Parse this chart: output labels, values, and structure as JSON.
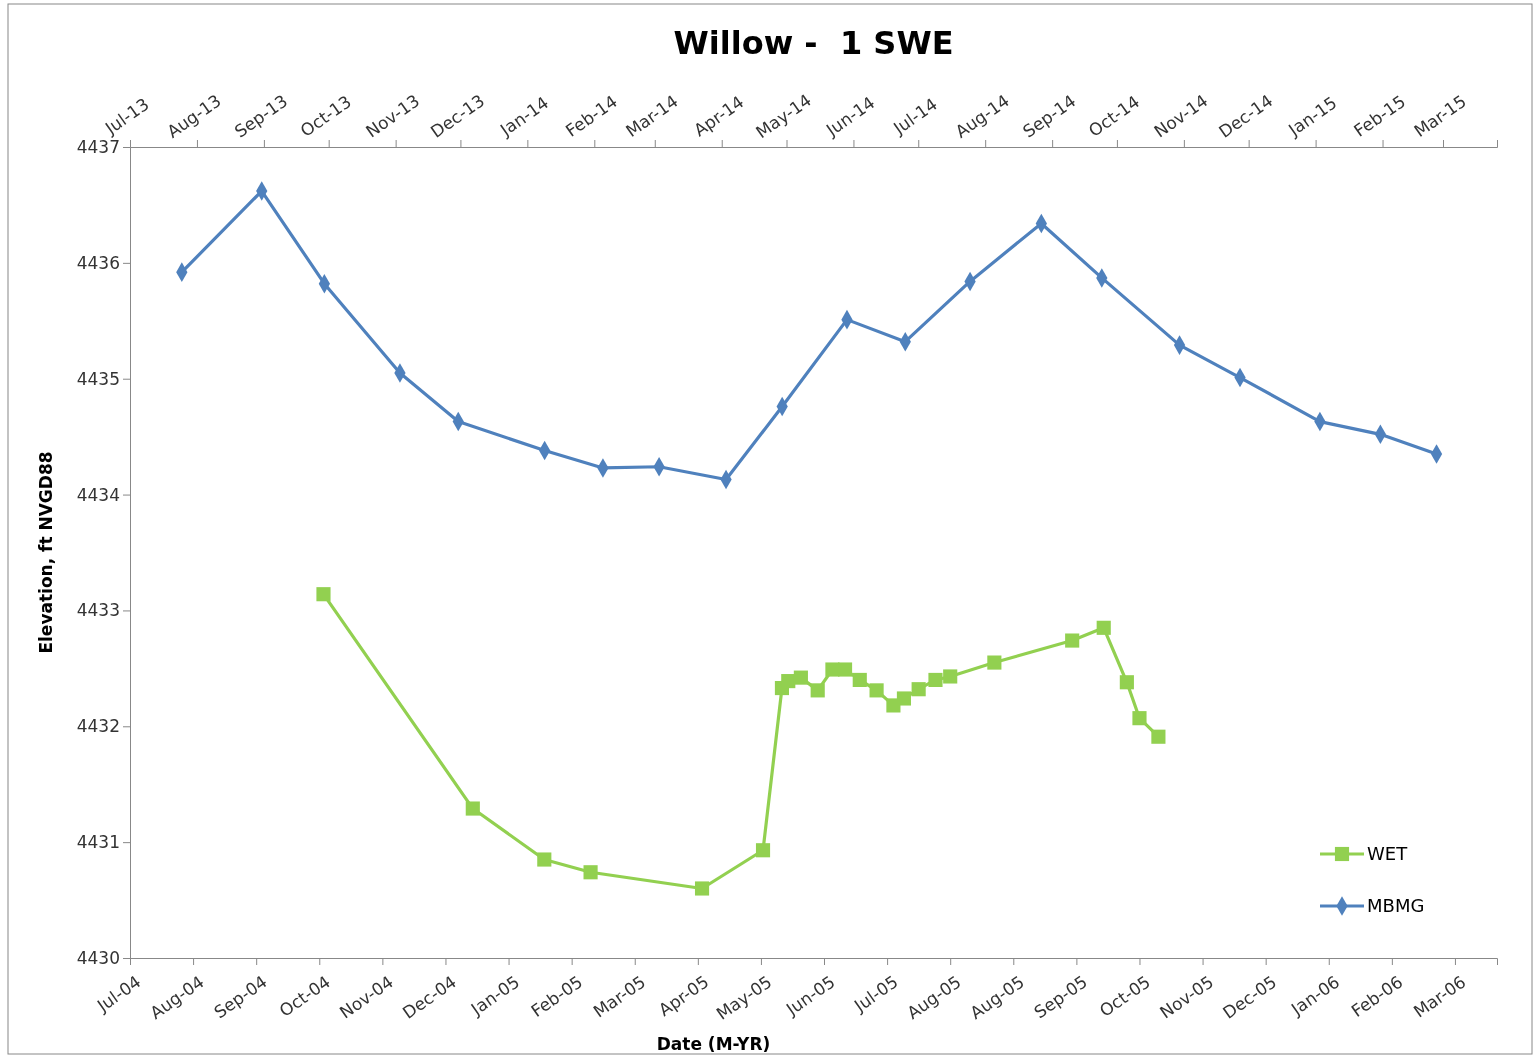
{
  "chart_data": {
    "type": "line",
    "title": "Willow -  1 SWE",
    "xlabel": "Date (M-YR)",
    "ylabel": "Elevation, ft NVGD88",
    "xlim": [
      "2004-07-07",
      "2006-04-18"
    ],
    "xticks": [
      {
        "value": "2004-07-07",
        "label": "Jul-04"
      },
      {
        "value": "2004-08-06",
        "label": "Aug-04"
      },
      {
        "value": "2004-09-05",
        "label": "Sep-04"
      },
      {
        "value": "2004-10-05",
        "label": "Oct-04"
      },
      {
        "value": "2004-11-04",
        "label": "Nov-04"
      },
      {
        "value": "2004-12-04",
        "label": "Dec-04"
      },
      {
        "value": "2005-01-03",
        "label": "Jan-05"
      },
      {
        "value": "2005-02-02",
        "label": "Feb-05"
      },
      {
        "value": "2005-03-04",
        "label": "Mar-05"
      },
      {
        "value": "2005-04-03",
        "label": "Apr-05"
      },
      {
        "value": "2005-05-03",
        "label": "May-05"
      },
      {
        "value": "2005-06-02",
        "label": "Jun-05"
      },
      {
        "value": "2005-07-02",
        "label": "Jul-05"
      },
      {
        "value": "2005-08-01",
        "label": "Aug-05"
      },
      {
        "value": "2005-08-31",
        "label": "Aug-05"
      },
      {
        "value": "2005-09-30",
        "label": "Sep-05"
      },
      {
        "value": "2005-10-30",
        "label": "Oct-05"
      },
      {
        "value": "2005-11-29",
        "label": "Nov-05"
      },
      {
        "value": "2005-12-29",
        "label": "Dec-05"
      },
      {
        "value": "2006-01-28",
        "label": "Jan-06"
      },
      {
        "value": "2006-02-27",
        "label": "Feb-06"
      },
      {
        "value": "2006-03-29",
        "label": "Mar-06"
      }
    ],
    "x2lim": [
      "2013-07-01",
      "2015-03-26"
    ],
    "x2ticks": [
      {
        "value": "2013-07-01",
        "label": "Jul-13"
      },
      {
        "value": "2013-08-01",
        "label": "Aug-13"
      },
      {
        "value": "2013-09-01",
        "label": "Sep-13"
      },
      {
        "value": "2013-10-01",
        "label": "Oct-13"
      },
      {
        "value": "2013-11-01",
        "label": "Nov-13"
      },
      {
        "value": "2013-12-01",
        "label": "Dec-13"
      },
      {
        "value": "2014-01-01",
        "label": "Jan-14"
      },
      {
        "value": "2014-02-01",
        "label": "Feb-14"
      },
      {
        "value": "2014-03-01",
        "label": "Mar-14"
      },
      {
        "value": "2014-04-01",
        "label": "Apr-14"
      },
      {
        "value": "2014-05-01",
        "label": "May-14"
      },
      {
        "value": "2014-06-01",
        "label": "Jun-14"
      },
      {
        "value": "2014-07-01",
        "label": "Jul-14"
      },
      {
        "value": "2014-08-01",
        "label": "Aug-14"
      },
      {
        "value": "2014-09-01",
        "label": "Sep-14"
      },
      {
        "value": "2014-10-01",
        "label": "Oct-14"
      },
      {
        "value": "2014-11-01",
        "label": "Nov-14"
      },
      {
        "value": "2014-12-01",
        "label": "Dec-14"
      },
      {
        "value": "2015-01-01",
        "label": "Jan-15"
      },
      {
        "value": "2015-02-01",
        "label": "Feb-15"
      },
      {
        "value": "2015-03-01",
        "label": "Mar-15"
      }
    ],
    "ylim": [
      4430,
      4437
    ],
    "yticks": [
      4430,
      4431,
      4432,
      4433,
      4434,
      4435,
      4436,
      4437
    ],
    "grid": false,
    "legend": "bottom right",
    "series": [
      {
        "name": "WET",
        "color": "#92d050",
        "marker": "square",
        "x": [
          "2004-10-07",
          "2004-12-17",
          "2005-01-20",
          "2005-02-11",
          "2005-04-05",
          "2005-05-04",
          "2005-05-13",
          "2005-05-16",
          "2005-05-22",
          "2005-05-30",
          "2005-06-06",
          "2005-06-12",
          "2005-06-19",
          "2005-06-27",
          "2005-07-05",
          "2005-07-10",
          "2005-07-17",
          "2005-07-25",
          "2005-08-01",
          "2005-08-22",
          "2005-09-28",
          "2005-10-13",
          "2005-10-24",
          "2005-10-30",
          "2005-11-08"
        ],
        "values": [
          4433.14,
          4431.29,
          4430.85,
          4430.74,
          4430.6,
          4430.93,
          4432.33,
          4432.39,
          4432.42,
          4432.31,
          4432.49,
          4432.49,
          4432.4,
          4432.31,
          4432.18,
          4432.24,
          4432.32,
          4432.4,
          4432.43,
          4432.55,
          4432.74,
          4432.85,
          4432.38,
          4432.07,
          4431.91
        ]
      },
      {
        "name": "MBMG",
        "color": "#4f81bd",
        "marker": "diamond",
        "axis": "x2",
        "x": [
          "2013-07-25",
          "2013-08-31",
          "2013-09-29",
          "2013-11-03",
          "2013-11-30",
          "2014-01-09",
          "2014-02-05",
          "2014-03-03",
          "2014-04-03",
          "2014-04-29",
          "2014-05-29",
          "2014-06-25",
          "2014-07-25",
          "2014-08-27",
          "2014-09-24",
          "2014-10-30",
          "2014-11-27",
          "2015-01-03",
          "2015-01-31",
          "2015-02-26"
        ],
        "values": [
          4435.92,
          4436.62,
          4435.82,
          4435.05,
          4434.63,
          4434.38,
          4434.23,
          4434.24,
          4434.13,
          4434.76,
          4435.51,
          4435.32,
          4435.84,
          4436.34,
          4435.87,
          4435.29,
          4435.01,
          4434.63,
          4434.52,
          4434.35
        ]
      }
    ]
  }
}
